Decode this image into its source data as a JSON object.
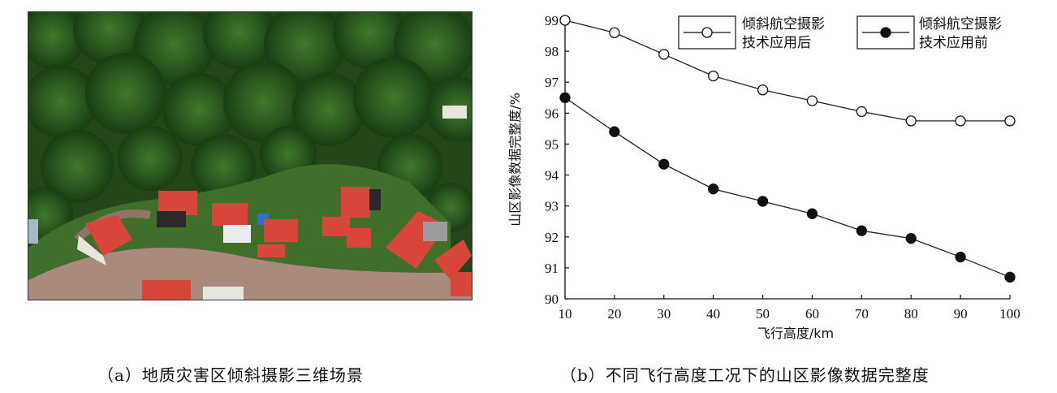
{
  "panel_a": {
    "caption": "（a）地质灾害区倾斜摄影三维场景",
    "image_description_icon": "aerial-oblique-photo-icon"
  },
  "panel_b": {
    "caption": "（b）不同飞行高度工况下的山区影像数据完整度"
  },
  "chart_data": {
    "type": "line",
    "title": "",
    "xlabel": "飞行高度/km",
    "ylabel": "山区影像数据完整度/%",
    "x": [
      10,
      20,
      30,
      40,
      50,
      60,
      70,
      80,
      90,
      100
    ],
    "xlim": [
      10,
      100
    ],
    "ylim": [
      90,
      99
    ],
    "x_ticks": [
      10,
      20,
      30,
      40,
      50,
      60,
      70,
      80,
      90,
      100
    ],
    "y_ticks": [
      90,
      91,
      92,
      93,
      94,
      95,
      96,
      97,
      98,
      99
    ],
    "grid": false,
    "legend_position": "top",
    "series": [
      {
        "name": "倾斜航空摄影技术应用后",
        "legend_lines": [
          "倾斜航空摄影",
          "技术应用后"
        ],
        "marker": "open-circle",
        "color": "#222222",
        "values": [
          99.0,
          98.6,
          97.9,
          97.2,
          96.75,
          96.4,
          96.05,
          95.75,
          95.75,
          95.75
        ]
      },
      {
        "name": "倾斜航空摄影技术应用前",
        "legend_lines": [
          "倾斜航空摄影",
          "技术应用前"
        ],
        "marker": "filled-circle",
        "color": "#222222",
        "values": [
          96.5,
          95.4,
          94.35,
          93.55,
          93.15,
          92.75,
          92.2,
          91.95,
          91.35,
          90.7
        ]
      }
    ]
  }
}
